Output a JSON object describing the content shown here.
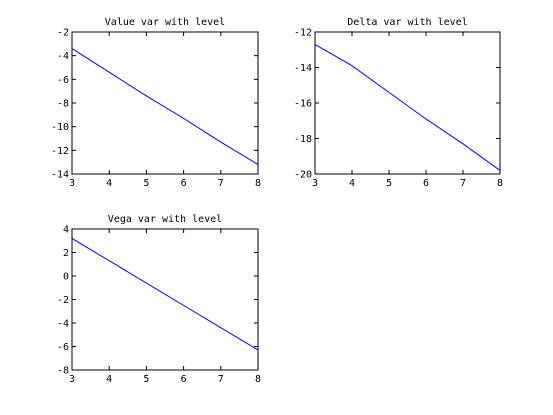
{
  "chart_data": [
    {
      "type": "line",
      "title": "Value var with level",
      "xlabel": "",
      "ylabel": "",
      "xlim": [
        3,
        8
      ],
      "ylim": [
        -14,
        -2
      ],
      "xticks": [
        "3",
        "4",
        "5",
        "6",
        "7",
        "8"
      ],
      "yticks": [
        "-2",
        "-4",
        "-6",
        "-8",
        "-10",
        "-12",
        "-14"
      ],
      "grid": false,
      "series": [
        {
          "x": [
            3,
            4,
            5,
            6,
            7,
            8
          ],
          "y": [
            -3.4,
            -5.4,
            -7.4,
            -9.3,
            -11.3,
            -13.2
          ],
          "color": "#0000ff"
        }
      ]
    },
    {
      "type": "line",
      "title": "Delta var with level",
      "xlabel": "",
      "ylabel": "",
      "xlim": [
        3,
        8
      ],
      "ylim": [
        -20,
        -12
      ],
      "xticks": [
        "3",
        "4",
        "5",
        "6",
        "7",
        "8"
      ],
      "yticks": [
        "-12",
        "-14",
        "-16",
        "-18",
        "-20"
      ],
      "grid": false,
      "series": [
        {
          "x": [
            3,
            4,
            5,
            6,
            7,
            8
          ],
          "y": [
            -12.7,
            -13.9,
            -15.4,
            -16.9,
            -18.3,
            -19.8
          ],
          "color": "#0000ff"
        }
      ]
    },
    {
      "type": "line",
      "title": "Vega var with level",
      "xlabel": "",
      "ylabel": "",
      "xlim": [
        3,
        8
      ],
      "ylim": [
        -8,
        4
      ],
      "xticks": [
        "3",
        "4",
        "5",
        "6",
        "7",
        "8"
      ],
      "yticks": [
        "4",
        "2",
        "0",
        "-2",
        "-4",
        "-6",
        "-8"
      ],
      "grid": false,
      "series": [
        {
          "x": [
            3,
            4,
            5,
            6,
            7,
            8
          ],
          "y": [
            3.2,
            1.3,
            -0.6,
            -2.5,
            -4.4,
            -6.3
          ],
          "color": "#0000ff"
        }
      ]
    }
  ]
}
